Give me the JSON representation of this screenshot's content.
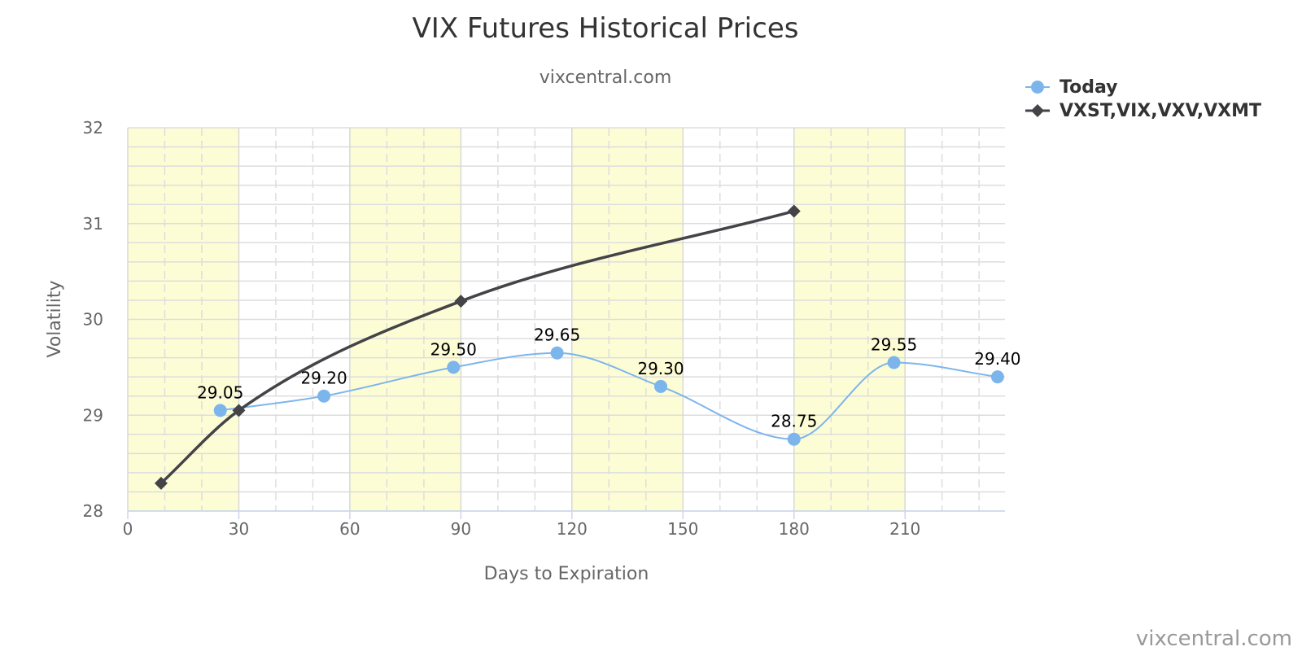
{
  "chart_data": {
    "type": "line",
    "title": "VIX Futures Historical Prices",
    "subtitle": "vixcentral.com",
    "xlabel": "Days to Expiration",
    "ylabel": "Volatility",
    "xlim": [
      0,
      237
    ],
    "ylim": [
      28,
      32
    ],
    "x_ticks": [
      0,
      30,
      60,
      90,
      120,
      150,
      180,
      210
    ],
    "y_ticks": [
      28,
      29,
      30,
      31,
      32
    ],
    "x_band_ranges": [
      [
        0,
        30
      ],
      [
        60,
        90
      ],
      [
        120,
        150
      ],
      [
        180,
        210
      ]
    ],
    "band_color": "#fdfdd5",
    "grid": true,
    "legend_position": "top-right",
    "series": [
      {
        "name": "Today",
        "color": "#7cb5ec",
        "marker": "circle",
        "x": [
          25,
          53,
          88,
          116,
          144,
          180,
          207,
          235
        ],
        "values": [
          29.05,
          29.2,
          29.5,
          29.65,
          29.3,
          28.75,
          29.55,
          29.4
        ],
        "data_labels": [
          "29.05",
          "29.20",
          "29.50",
          "29.65",
          "29.30",
          "28.75",
          "29.55",
          "29.40"
        ]
      },
      {
        "name": "VXST,VIX,VXV,VXMT",
        "color": "#434348",
        "marker": "diamond",
        "x": [
          9,
          30,
          90,
          180
        ],
        "values": [
          28.29,
          29.05,
          30.19,
          31.13
        ]
      }
    ],
    "credit": "vixcentral.com"
  }
}
